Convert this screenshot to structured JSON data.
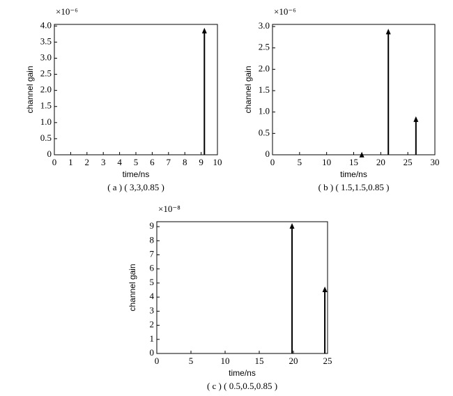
{
  "chart_data": [
    {
      "type": "stem",
      "caption": "( a ) ( 3,3,0.85 )",
      "xlabel": "time/ns",
      "ylabel": "channel gain",
      "y_multiplier": "×10⁻⁶",
      "x": [
        9.2
      ],
      "values": [
        3.88
      ],
      "color": "#000000",
      "xlim": [
        0,
        10
      ],
      "xticks": [
        0,
        1,
        2,
        3,
        4,
        5,
        6,
        7,
        8,
        9,
        10
      ],
      "ylim": [
        0,
        4.05
      ],
      "yticks": [
        0,
        0.5,
        {
          "value": 1,
          "label": "1.0"
        },
        1.5,
        {
          "value": 2,
          "label": "2.0"
        },
        2.5,
        {
          "value": 3,
          "label": "3.0"
        },
        3.5,
        {
          "value": 4,
          "label": "4.0"
        }
      ]
    },
    {
      "type": "stem",
      "caption": "( b ) ( 1.5,1.5,0.85 )",
      "xlabel": "time/ns",
      "ylabel": "channel gain",
      "y_multiplier": "×10⁻⁶",
      "x": [
        16.5,
        21.4,
        26.5
      ],
      "values": [
        0.02,
        2.9,
        0.85
      ],
      "color": "#000000",
      "xlim": [
        0,
        30
      ],
      "xticks": [
        0,
        5,
        10,
        15,
        20,
        25,
        30
      ],
      "ylim": [
        0,
        3.05
      ],
      "yticks": [
        0,
        0.5,
        {
          "value": 1,
          "label": "1.0"
        },
        1.5,
        {
          "value": 2,
          "label": "2.0"
        },
        2.5,
        {
          "value": 3,
          "label": "3.0"
        }
      ]
    },
    {
      "type": "stem",
      "caption": "( c ) ( 0.5,0.5,0.85 )",
      "xlabel": "time/ns",
      "ylabel": "channel gain",
      "y_multiplier": "×10⁻⁸",
      "x": [
        19.8,
        24.6
      ],
      "values": [
        9.1,
        4.6
      ],
      "color": "#000000",
      "xlim": [
        0,
        25
      ],
      "xticks": [
        0,
        5,
        10,
        15,
        20,
        25
      ],
      "ylim": [
        0,
        9.35
      ],
      "yticks": [
        0,
        1,
        2,
        3,
        4,
        5,
        6,
        7,
        8,
        9
      ]
    }
  ]
}
